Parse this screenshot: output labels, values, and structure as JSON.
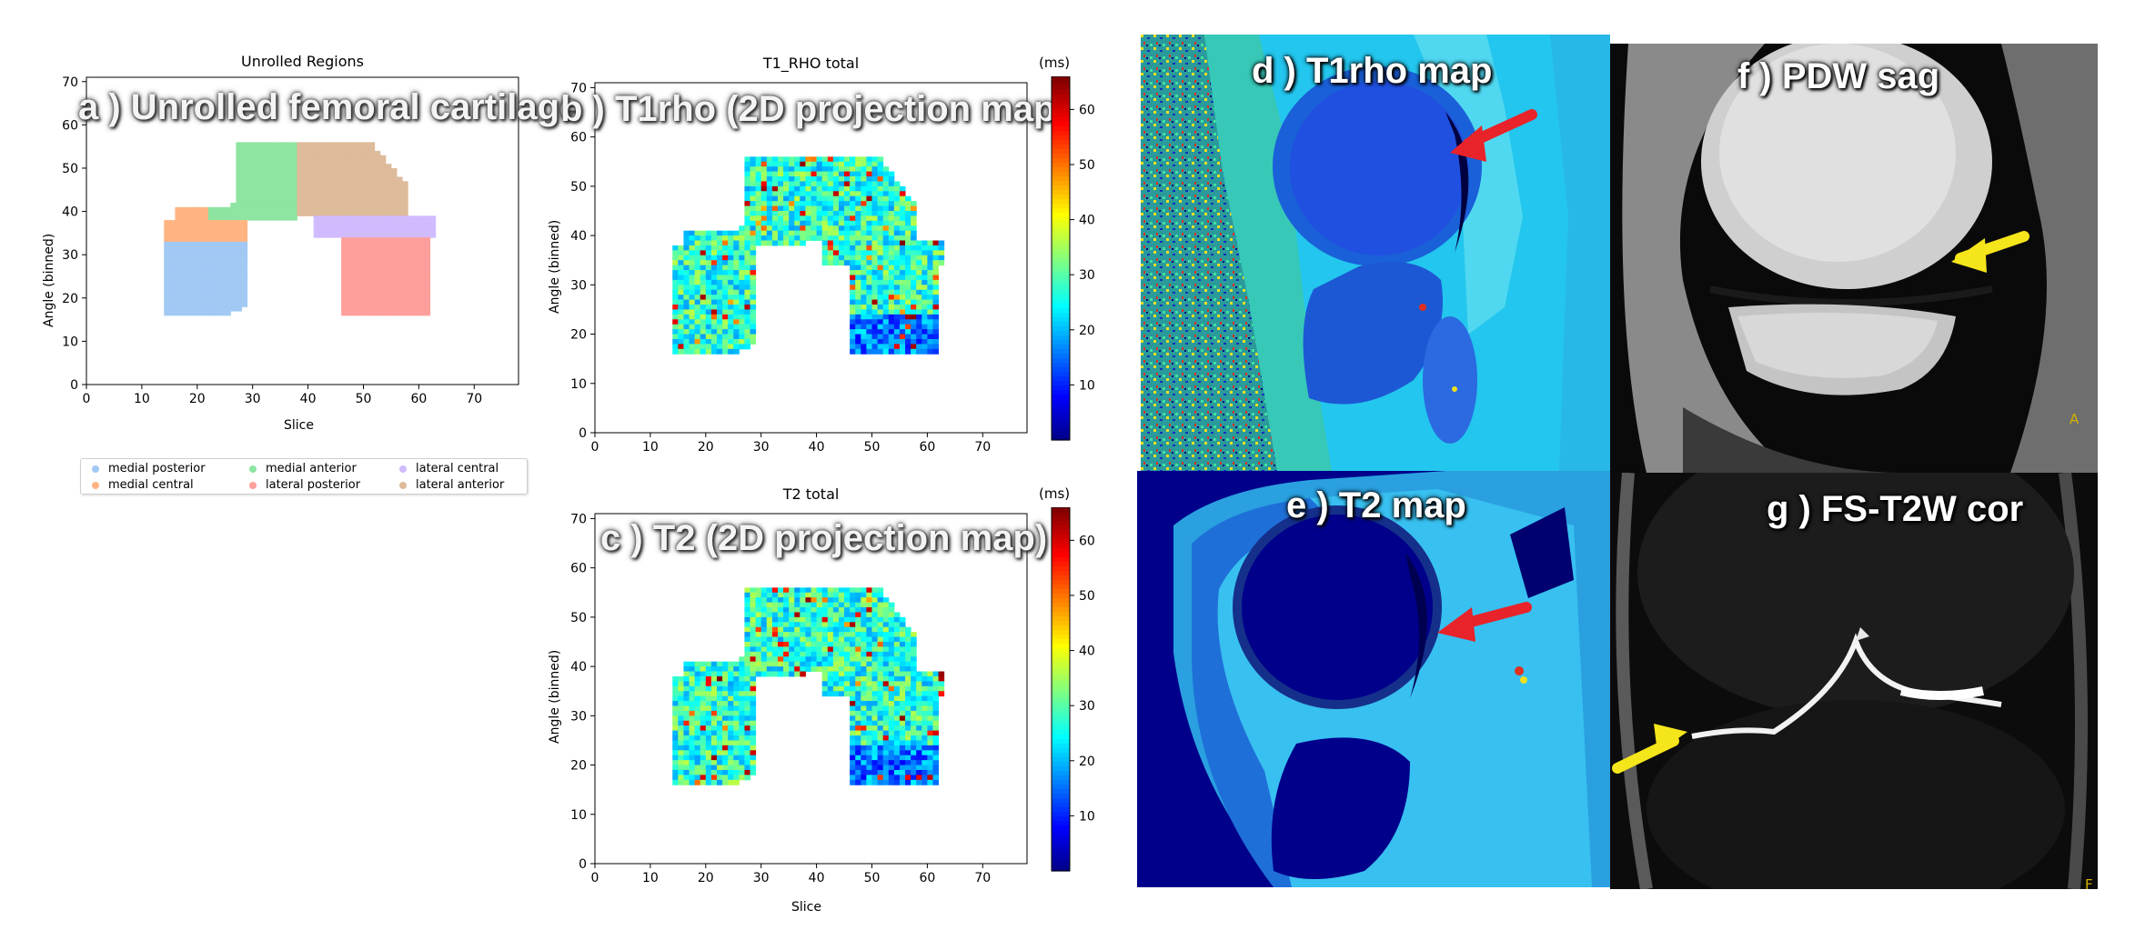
{
  "panels": {
    "a": {
      "title": "Unrolled Regions",
      "overlay": "a ) Unrolled femoral cartilage",
      "xlabel": "Slice",
      "ylabel": "Angle (binned)",
      "legend": [
        {
          "label": "medial posterior",
          "color": "#a1c9f4"
        },
        {
          "label": "medial anterior",
          "color": "#8de5a1"
        },
        {
          "label": "lateral central",
          "color": "#d0bbff"
        },
        {
          "label": "medial central",
          "color": "#ffb482"
        },
        {
          "label": "lateral posterior",
          "color": "#ff9f9b"
        },
        {
          "label": "lateral anterior",
          "color": "#debb9b"
        }
      ]
    },
    "b": {
      "title": "T1_RHO total",
      "overlay": "b ) T1rho  (2D projection map)",
      "ylabel": "Angle (binned)",
      "cbar_unit": "(ms)",
      "cbar_ticks": [
        "60",
        "50",
        "40",
        "30",
        "20",
        "10"
      ]
    },
    "c": {
      "title": "T2 total",
      "overlay": "c ) T2 (2D projection map)",
      "xlabel": "Slice",
      "ylabel": "Angle (binned)",
      "cbar_unit": "(ms)",
      "cbar_ticks": [
        "60",
        "50",
        "40",
        "30",
        "20",
        "10"
      ]
    },
    "d": {
      "overlay": "d ) T1rho map"
    },
    "e": {
      "overlay": "e ) T2 map"
    },
    "f": {
      "overlay": "f ) PDW sag",
      "marker": "A"
    },
    "g": {
      "overlay": "g ) FS-T2W cor",
      "marker": "F"
    }
  },
  "axes": {
    "x_ticks": [
      "0",
      "10",
      "20",
      "30",
      "40",
      "50",
      "60",
      "70"
    ],
    "y_ticks": [
      "0",
      "10",
      "20",
      "30",
      "40",
      "50",
      "60",
      "70"
    ],
    "xlim": [
      0,
      78
    ],
    "ylim": [
      71,
      0
    ]
  },
  "colors": {
    "arrow_red": "#e8232a",
    "arrow_yellow": "#f5e51b"
  }
}
